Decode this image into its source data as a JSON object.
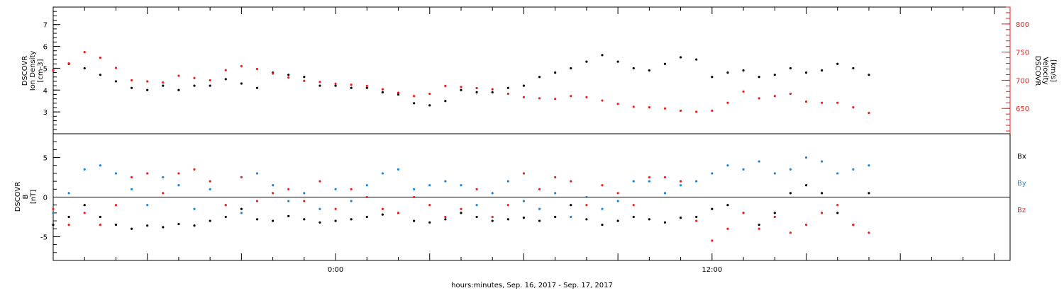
{
  "colors": {
    "black": "#000000",
    "red": "#e8211f",
    "blue": "#1e86d6"
  },
  "xlabel": "hours:minutes, Sep. 16, 2017 - Sep. 17, 2017",
  "chart_data": [
    {
      "type": "scatter",
      "panel": "top",
      "x_unit": "hours relative to 2017-09-17 00:00",
      "xlim": [
        -9,
        21.5
      ],
      "x_ticks": [
        0,
        12
      ],
      "x_tick_labels": [
        "0:00",
        "12:00"
      ],
      "ylabel_left": [
        "DSCOVR",
        "Ion Density",
        "[cm-3]"
      ],
      "ylabel_right": [
        "DSCOVR",
        "Velocity",
        "[km/s]"
      ],
      "ylim_left": [
        2.0,
        7.8
      ],
      "yticks_left": [
        3,
        4,
        5,
        6,
        7
      ],
      "ylim_right": [
        605,
        830
      ],
      "yticks_right": [
        650,
        700,
        750,
        800
      ],
      "series": [
        {
          "axis": "left",
          "color": "#000000",
          "x": [
            -9.0,
            -8.5,
            -8.0,
            -7.5,
            -7.0,
            -6.5,
            -6.0,
            -5.5,
            -5.0,
            -4.5,
            -4.0,
            -3.5,
            -3.0,
            -2.5,
            -2.0,
            -1.5,
            -1.0,
            -0.5,
            0.0,
            0.5,
            1.0,
            1.5,
            2.0,
            2.5,
            3.0,
            3.5,
            4.0,
            4.5,
            5.0,
            5.5,
            6.0,
            6.5,
            7.0,
            7.5,
            8.0,
            8.5,
            9.0,
            9.5,
            10.0,
            10.5,
            11.0,
            11.5,
            12.0,
            12.5,
            13.0,
            13.5,
            14.0,
            14.5,
            15.0,
            15.5,
            16.0,
            16.5,
            17.0
          ],
          "y": [
            4.9,
            5.2,
            5.0,
            4.7,
            4.4,
            4.1,
            4.0,
            4.2,
            4.0,
            4.2,
            4.2,
            4.5,
            4.3,
            4.1,
            4.8,
            4.7,
            4.6,
            4.2,
            4.2,
            4.1,
            4.1,
            3.9,
            3.8,
            3.4,
            3.3,
            3.5,
            4.0,
            3.9,
            3.9,
            4.1,
            4.2,
            4.6,
            4.8,
            5.0,
            5.3,
            5.6,
            5.3,
            5.0,
            4.9,
            5.2,
            5.5,
            5.4,
            4.6,
            4.8,
            4.9,
            4.6,
            4.7,
            5.0,
            4.8,
            4.9,
            5.2,
            5.0,
            4.7
          ]
        },
        {
          "axis": "right",
          "color": "#e8211f",
          "x": [
            -9.0,
            -8.5,
            -8.0,
            -7.5,
            -7.0,
            -6.5,
            -6.0,
            -5.5,
            -5.0,
            -4.5,
            -4.0,
            -3.5,
            -3.0,
            -2.5,
            -2.0,
            -1.5,
            -1.0,
            -0.5,
            0.0,
            0.5,
            1.0,
            1.5,
            2.0,
            2.5,
            3.0,
            3.5,
            4.0,
            4.5,
            5.0,
            5.5,
            6.0,
            6.5,
            7.0,
            7.5,
            8.0,
            8.5,
            9.0,
            9.5,
            10.0,
            10.5,
            11.0,
            11.5,
            12.0,
            12.5,
            13.0,
            13.5,
            14.0,
            14.5,
            15.0,
            15.5,
            16.0,
            16.5,
            17.0
          ],
          "y": [
            718,
            730,
            750,
            740,
            722,
            700,
            698,
            696,
            708,
            704,
            700,
            718,
            725,
            720,
            712,
            705,
            699,
            697,
            694,
            692,
            690,
            684,
            678,
            672,
            676,
            690,
            688,
            686,
            684,
            676,
            670,
            668,
            667,
            672,
            670,
            664,
            658,
            653,
            652,
            650,
            646,
            644,
            646,
            660,
            680,
            668,
            672,
            676,
            662,
            660,
            660,
            652,
            642
          ]
        }
      ]
    },
    {
      "type": "scatter",
      "panel": "bottom",
      "x_unit": "hours relative to 2017-09-17 00:00",
      "xlim": [
        -9,
        21.5
      ],
      "x_ticks": [
        0,
        12
      ],
      "x_tick_labels": [
        "0:00",
        "12:00"
      ],
      "ylabel_left": [
        "DSCOVR",
        "B",
        "[nT]"
      ],
      "ylim": [
        -8,
        8
      ],
      "yticks": [
        -5,
        0,
        5
      ],
      "zero_line": true,
      "series": [
        {
          "name": "Bx",
          "color": "#000000",
          "x": [
            -9.0,
            -8.5,
            -8.0,
            -7.5,
            -7.0,
            -6.5,
            -6.0,
            -5.5,
            -5.0,
            -4.5,
            -4.0,
            -3.5,
            -3.0,
            -2.5,
            -2.0,
            -1.5,
            -1.0,
            -0.5,
            0.0,
            0.5,
            1.0,
            1.5,
            2.0,
            2.5,
            3.0,
            3.5,
            4.0,
            4.5,
            5.0,
            5.5,
            6.0,
            6.5,
            7.0,
            7.5,
            8.0,
            8.5,
            9.0,
            9.5,
            10.0,
            10.5,
            11.0,
            11.5,
            12.0,
            12.5,
            13.0,
            13.5,
            14.0,
            14.5,
            15.0,
            15.5,
            16.0,
            16.5,
            17.0
          ],
          "y": [
            -3.5,
            -2.5,
            -1.0,
            -2.5,
            -3.5,
            -4.0,
            -3.6,
            -3.8,
            -3.4,
            -3.6,
            -3.0,
            -2.5,
            -1.5,
            -2.8,
            -3.0,
            -2.4,
            -2.8,
            -3.2,
            -3.0,
            -2.8,
            -2.5,
            -2.2,
            -2.0,
            -3.0,
            -3.2,
            -2.8,
            -2.0,
            -2.5,
            -3.0,
            -2.8,
            -2.6,
            -3.0,
            -2.5,
            -1.0,
            -2.8,
            -3.5,
            -3.0,
            -2.5,
            -2.8,
            -3.2,
            -2.6,
            -2.5,
            -1.5,
            -1.0,
            -2.0,
            -3.5,
            -2.0,
            0.5,
            1.5,
            0.5,
            -2.0,
            -3.5,
            0.5
          ]
        },
        {
          "name": "By",
          "color": "#1e86d6",
          "x": [
            -9.0,
            -8.5,
            -8.0,
            -7.5,
            -7.0,
            -6.5,
            -6.0,
            -5.5,
            -5.0,
            -4.5,
            -4.0,
            -3.5,
            -3.0,
            -2.5,
            -2.0,
            -1.5,
            -1.0,
            -0.5,
            0.0,
            0.5,
            1.0,
            1.5,
            2.0,
            2.5,
            3.0,
            3.5,
            4.0,
            4.5,
            5.0,
            5.5,
            6.0,
            6.5,
            7.0,
            7.5,
            8.0,
            8.5,
            9.0,
            9.5,
            10.0,
            10.5,
            11.0,
            11.5,
            12.0,
            12.5,
            13.0,
            13.5,
            14.0,
            14.5,
            15.0,
            15.5,
            16.0,
            16.5,
            17.0
          ],
          "y": [
            -2.0,
            0.5,
            3.5,
            4.0,
            3.0,
            1.0,
            -1.0,
            2.5,
            1.5,
            -1.5,
            1.0,
            -1.0,
            -2.0,
            3.0,
            1.5,
            -0.5,
            0.5,
            -1.5,
            1.0,
            -0.5,
            1.5,
            3.0,
            3.5,
            1.0,
            1.5,
            2.0,
            1.5,
            -1.0,
            0.5,
            2.0,
            -0.5,
            -1.5,
            0.5,
            -2.5,
            0.0,
            -1.5,
            -0.5,
            2.0,
            2.0,
            0.5,
            1.5,
            2.0,
            3.0,
            4.0,
            3.5,
            4.5,
            3.0,
            3.5,
            5.0,
            4.5,
            3.0,
            3.5,
            4.0
          ]
        },
        {
          "name": "Bz",
          "color": "#e8211f",
          "x": [
            -9.0,
            -8.5,
            -8.0,
            -7.5,
            -7.0,
            -6.5,
            -6.0,
            -5.5,
            -5.0,
            -4.5,
            -4.0,
            -3.5,
            -3.0,
            -2.5,
            -2.0,
            -1.5,
            -1.0,
            -0.5,
            0.0,
            0.5,
            1.0,
            1.5,
            2.0,
            2.5,
            3.0,
            3.5,
            4.0,
            4.5,
            5.0,
            5.5,
            6.0,
            6.5,
            7.0,
            7.5,
            8.0,
            8.5,
            9.0,
            9.5,
            10.0,
            10.5,
            11.0,
            11.5,
            12.0,
            12.5,
            13.0,
            13.5,
            14.0,
            14.5,
            15.0,
            15.5,
            16.0,
            16.5,
            17.0
          ],
          "y": [
            -1.5,
            -3.5,
            -2.0,
            -3.5,
            -1.0,
            2.5,
            3.0,
            0.5,
            3.0,
            3.5,
            2.0,
            -1.0,
            2.5,
            -0.5,
            0.5,
            1.0,
            -0.5,
            2.0,
            -1.5,
            1.0,
            0.0,
            -1.5,
            -2.0,
            0.0,
            -1.0,
            -2.5,
            -1.5,
            1.0,
            -2.5,
            -1.0,
            3.0,
            1.0,
            2.5,
            2.0,
            -1.0,
            1.5,
            0.5,
            -1.0,
            2.5,
            2.5,
            2.0,
            -3.0,
            -5.5,
            -4.0,
            -2.0,
            -4.0,
            -2.5,
            -4.5,
            -3.5,
            -2.0,
            -1.0,
            -3.5,
            -4.5
          ]
        }
      ],
      "legend": [
        "Bx",
        "By",
        "Bz"
      ],
      "legend_placement": "right"
    }
  ]
}
